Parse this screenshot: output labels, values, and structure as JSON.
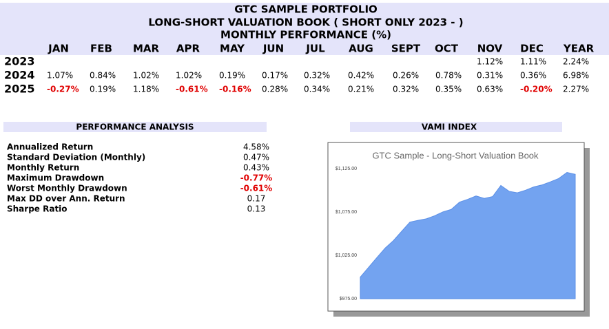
{
  "header": {
    "title": [
      "GTC SAMPLE PORTFOLIO",
      "LONG-SHORT VALUATION BOOK ( SHORT ONLY 2023 - )",
      "MONTHLY PERFORMANCE (%)"
    ]
  },
  "table": {
    "columns": [
      "JAN",
      "FEB",
      "MAR",
      "APR",
      "MAY",
      "JUN",
      "JUL",
      "AUG",
      "SEPT",
      "OCT",
      "NOV",
      "DEC",
      "YEAR"
    ],
    "rows": [
      {
        "year": "2023",
        "cells": [
          null,
          null,
          null,
          null,
          null,
          null,
          null,
          null,
          null,
          null,
          "1.12%",
          "1.11%",
          "2.24%"
        ]
      },
      {
        "year": "2024",
        "cells": [
          "1.07%",
          "0.84%",
          "1.02%",
          "1.02%",
          "0.19%",
          "0.17%",
          "0.32%",
          "0.42%",
          "0.26%",
          "0.78%",
          "0.31%",
          "0.36%",
          "6.98%"
        ]
      },
      {
        "year": "2025",
        "cells": [
          "-0.27%",
          "0.19%",
          "1.18%",
          "-0.61%",
          "-0.16%",
          "0.28%",
          "0.34%",
          "0.21%",
          "0.32%",
          "0.35%",
          "0.63%",
          "-0.20%",
          "2.27%"
        ]
      }
    ]
  },
  "analysis": {
    "title": "PERFORMANCE ANALYSIS",
    "rows": [
      {
        "label": "Annualized Return",
        "value": "4.58%"
      },
      {
        "label": "Standard Deviation (Monthly)",
        "value": "0.47%"
      },
      {
        "label": "Monthly Return",
        "value": "0.43%"
      },
      {
        "label": "Maximum Drawdown",
        "value": "-0.77%"
      },
      {
        "label": "Worst Monthly Drawdown",
        "value": "-0.61%"
      },
      {
        "label": "Max DD over Ann. Return",
        "value": "0.17"
      },
      {
        "label": "Sharpe Ratio",
        "value": "0.13"
      }
    ]
  },
  "vami_heading": "VAMI INDEX",
  "chart_data": {
    "type": "area",
    "title": "GTC Sample - Long-Short Valuation Book",
    "color": "#73a3f0",
    "values": [
      1000,
      1011.2,
      1022.4,
      1033.4,
      1042.0,
      1052.7,
      1063.4,
      1065.4,
      1067.2,
      1070.7,
      1075.2,
      1078.0,
      1086.4,
      1089.7,
      1093.6,
      1090.7,
      1092.8,
      1105.7,
      1098.9,
      1097.2,
      1100.2,
      1104.0,
      1106.3,
      1109.8,
      1113.7,
      1120.7,
      1118.5
    ],
    "ylim": [
      975,
      1133
    ],
    "yticks": [
      {
        "value": 975,
        "label": "$975.00"
      },
      {
        "value": 1025,
        "label": "$1,025.00"
      },
      {
        "value": 1075,
        "label": "$1,075.00"
      },
      {
        "value": 1125,
        "label": "$1,125.00"
      }
    ]
  }
}
